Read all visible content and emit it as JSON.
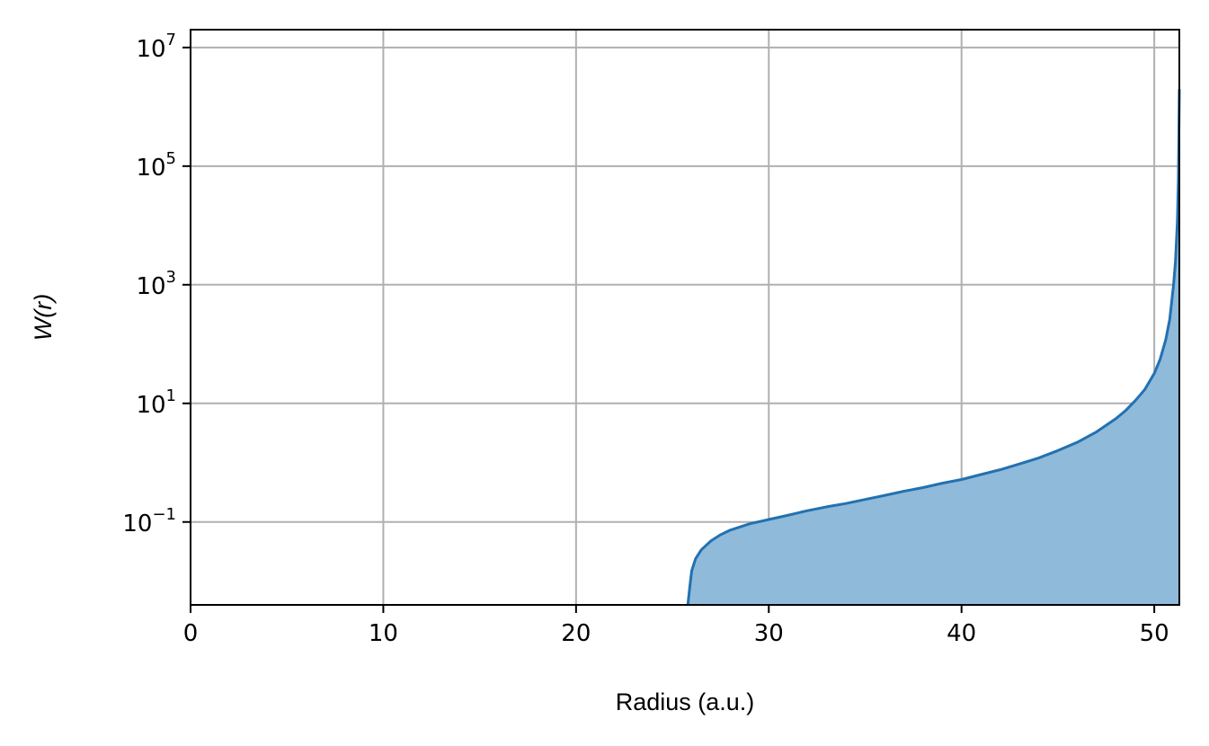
{
  "chart_data": {
    "type": "area",
    "title": "",
    "xlabel": "Radius (a.u.)",
    "ylabel": "W(r)",
    "xlim": [
      0,
      51.3
    ],
    "ylim": [
      0.004,
      20000000
    ],
    "yscale": "log",
    "grid": true,
    "x_ticks": [
      {
        "value": 0,
        "label": "0"
      },
      {
        "value": 10,
        "label": "10"
      },
      {
        "value": 20,
        "label": "20"
      },
      {
        "value": 30,
        "label": "30"
      },
      {
        "value": 40,
        "label": "40"
      },
      {
        "value": 50,
        "label": "50"
      }
    ],
    "y_ticks": [
      {
        "value": 0.1,
        "base": "10",
        "exp": "−1"
      },
      {
        "value": 10,
        "base": "10",
        "exp": "1"
      },
      {
        "value": 1000,
        "base": "10",
        "exp": "3"
      },
      {
        "value": 100000,
        "base": "10",
        "exp": "5"
      },
      {
        "value": 10000000,
        "base": "10",
        "exp": "7"
      }
    ],
    "series": [
      {
        "line_color": "#2271b1",
        "fill_color": "#8fbad9",
        "x": [
          25.8,
          25.9,
          26.0,
          26.2,
          26.5,
          27.0,
          27.5,
          28.0,
          29.0,
          30.0,
          31.0,
          32.0,
          33.0,
          34.0,
          35.0,
          36.0,
          37.0,
          38.0,
          39.0,
          40.0,
          41.0,
          42.0,
          43.0,
          44.0,
          45.0,
          46.0,
          47.0,
          48.0,
          48.5,
          49.0,
          49.5,
          50.0,
          50.3,
          50.6,
          50.8,
          51.0,
          51.1,
          51.2,
          51.25,
          51.3
        ],
        "y": [
          0.004,
          0.008,
          0.015,
          0.024,
          0.034,
          0.048,
          0.061,
          0.073,
          0.093,
          0.11,
          0.13,
          0.155,
          0.18,
          0.205,
          0.24,
          0.28,
          0.33,
          0.38,
          0.45,
          0.52,
          0.63,
          0.76,
          0.95,
          1.2,
          1.6,
          2.2,
          3.3,
          5.5,
          7.5,
          11,
          17,
          32,
          55,
          120,
          260,
          1000,
          2500,
          12000,
          60000,
          2000000
        ]
      }
    ]
  }
}
